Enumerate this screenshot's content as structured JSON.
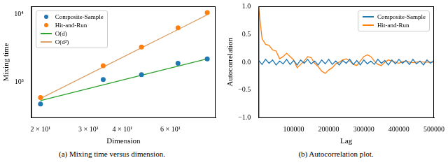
{
  "chart_data": [
    {
      "type": "scatter",
      "caption": "(a) Mixing time versus dimension.",
      "x_label": "Dimension",
      "y_label": "Mixing time",
      "log": true,
      "grid": false,
      "legend": "upper left",
      "x": [
        20,
        34,
        47,
        64,
        82
      ],
      "series": [
        {
          "name": "Composite-Sample",
          "type": "scatter",
          "marker": "circle",
          "color": "#1f77b4",
          "values": [
            480,
            1100,
            1300,
            1900,
            2200
          ]
        },
        {
          "name": "Hit-and-Run",
          "type": "scatter",
          "marker": "circle",
          "color": "#ff7f0e",
          "values": [
            600,
            1750,
            3300,
            6300,
            10500
          ]
        },
        {
          "name": "O(d)",
          "type": "line",
          "line_style": "solid",
          "color": "#2ca02c",
          "values": [
            540,
            918,
            1269,
            1728,
            2214
          ]
        },
        {
          "name": "O(d²)",
          "type": "line",
          "line_style": "solid",
          "color": "#d9a36b",
          "values": [
            580,
            1676,
            3203,
            5939,
            9750
          ]
        }
      ],
      "xlim": [
        18.5,
        88
      ],
      "xticks": [
        {
          "value": 20,
          "label": "2 × 10¹"
        },
        {
          "value": 30,
          "label": "3 × 10¹"
        },
        {
          "value": 40,
          "label": "4 × 10¹"
        },
        {
          "value": 60,
          "label": "6 × 10¹"
        }
      ],
      "ylim": [
        300,
        13000
      ],
      "yticks": [
        {
          "value": 1000,
          "label": "10³"
        },
        {
          "value": 10000,
          "label": "10⁴"
        }
      ]
    },
    {
      "type": "line",
      "caption": "(b) Autocorrelation plot.",
      "x_label": "Lag",
      "y_label": "Autocorrelation",
      "grid": false,
      "legend": "upper right",
      "x": [
        0,
        10000,
        20000,
        30000,
        40000,
        50000,
        60000,
        70000,
        80000,
        90000,
        100000,
        110000,
        120000,
        130000,
        140000,
        150000,
        160000,
        170000,
        180000,
        190000,
        200000,
        210000,
        220000,
        230000,
        240000,
        250000,
        260000,
        270000,
        280000,
        290000,
        300000,
        310000,
        320000,
        330000,
        340000,
        350000,
        360000,
        370000,
        380000,
        390000,
        400000,
        410000,
        420000,
        430000,
        440000,
        450000,
        460000,
        470000,
        480000,
        490000,
        500000
      ],
      "series": [
        {
          "name": "Composite-Sample",
          "line_style": "solid",
          "color": "#1f77b4",
          "values": [
            0.03,
            -0.04,
            0.05,
            -0.02,
            0.04,
            -0.05,
            0.02,
            -0.03,
            0.05,
            -0.04,
            0.03,
            -0.05,
            0.04,
            -0.02,
            0.05,
            -0.03,
            0.02,
            -0.05,
            0.04,
            -0.03,
            0.05,
            -0.04,
            0.02,
            -0.05,
            0.03,
            -0.02,
            0.05,
            -0.04,
            0.03,
            -0.05,
            0.04,
            -0.03,
            0.02,
            -0.04,
            0.05,
            -0.02,
            0.03,
            -0.05,
            0.04,
            -0.03,
            0.05,
            -0.02,
            0.03,
            -0.04,
            0.05,
            -0.03,
            0.02,
            -0.05,
            0.04,
            -0.02,
            0.03
          ]
        },
        {
          "name": "Hit-and-Run",
          "line_style": "solid",
          "color": "#ff7f0e",
          "values": [
            1.0,
            0.42,
            0.32,
            0.3,
            0.22,
            0.2,
            0.06,
            0.1,
            0.16,
            0.1,
            0.04,
            -0.1,
            -0.04,
            0.02,
            0.1,
            0.08,
            -0.02,
            -0.08,
            -0.16,
            -0.2,
            -0.14,
            -0.1,
            -0.03,
            0.0,
            0.04,
            0.06,
            0.02,
            -0.04,
            -0.06,
            0.02,
            0.1,
            0.13,
            0.1,
            0.02,
            -0.04,
            -0.06,
            0.0,
            0.04,
            0.02,
            0.0,
            -0.02,
            0.01,
            0.02,
            0.0,
            -0.01,
            0.0,
            0.01,
            0.0,
            0.0,
            0.0,
            0.0
          ]
        }
      ],
      "xlim": [
        0,
        500000
      ],
      "xticks": [
        100000,
        200000,
        300000,
        400000,
        500000
      ],
      "ylim": [
        -1,
        1
      ],
      "yticks": [
        {
          "value": -1,
          "label": "−1.0"
        },
        {
          "value": -0.5,
          "label": "−0.5"
        },
        {
          "value": 0,
          "label": "0.0"
        },
        {
          "value": 0.5,
          "label": "0.5"
        },
        {
          "value": 1,
          "label": "1.0"
        }
      ]
    }
  ]
}
